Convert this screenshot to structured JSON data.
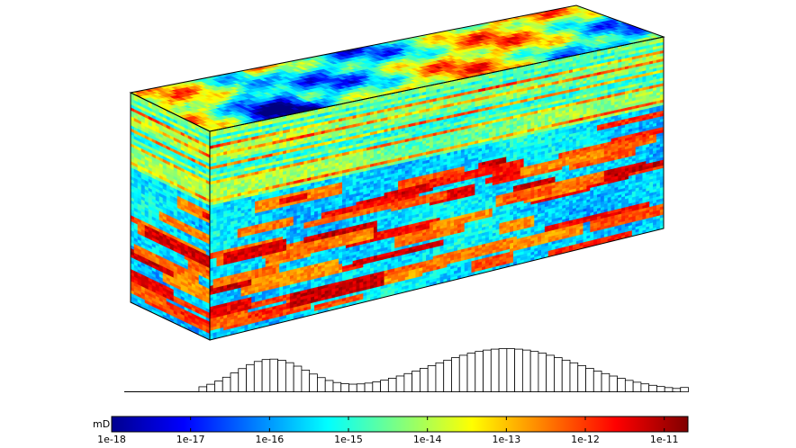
{
  "chart_data": [
    {
      "type": "volume-3d",
      "description_of_values": "3D permeability block, colored by log10 permeability",
      "faces": [
        "top",
        "front",
        "side"
      ],
      "layering": {
        "upper_zone": "thin high-permeability layers (yellow/orange/red streaks on cyan/green)",
        "lower_zone": "blue background with scattered orange/red lenses"
      }
    },
    {
      "type": "bar",
      "subtype": "histogram",
      "x_scale": "log10",
      "x_range": [
        -18,
        -10.7
      ],
      "bin_width_log10": 0.1,
      "distribution": {
        "kind": "bimodal",
        "modes": [
          {
            "center": -15.98,
            "spread": 0.45,
            "peak_fraction": 0.75
          },
          {
            "center": -13.0,
            "spread": 0.95,
            "peak_fraction": 1.0
          }
        ],
        "valley": {
          "x": -15.1,
          "fraction": 0.28
        },
        "nonzero_from": -16.85,
        "last_bin_fraction": 0.1
      }
    },
    {
      "type": "colorbar",
      "unit_label": "mD",
      "scale": "log10",
      "range": [
        -18,
        -10.7
      ],
      "tick_labels": [
        "1e-18",
        "1e-17",
        "1e-16",
        "1e-15",
        "1e-14",
        "1e-13",
        "1e-12",
        "1e-11"
      ],
      "tick_values": [
        -18,
        -17,
        -16,
        -15,
        -14,
        -13,
        -12,
        -11
      ],
      "colormap": "jet"
    }
  ]
}
